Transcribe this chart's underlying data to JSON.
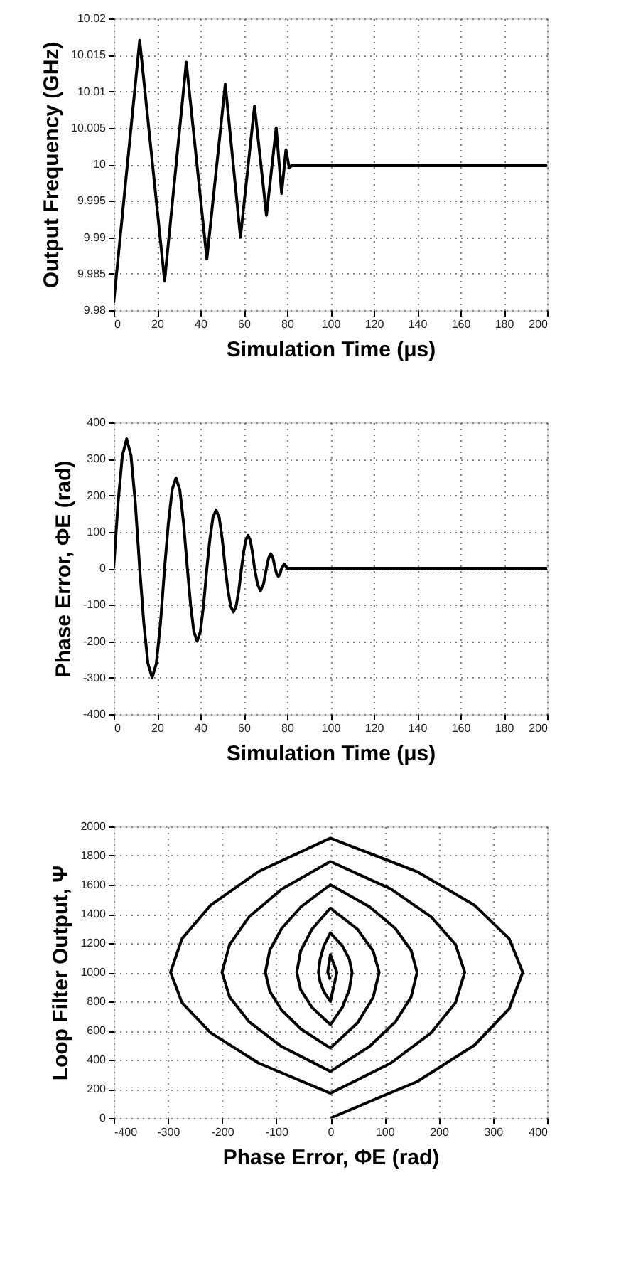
{
  "chart_data": [
    {
      "type": "line",
      "xlabel": "Simulation Time (μs)",
      "ylabel": "Output Frequency (GHz)",
      "x": [
        0,
        12,
        23.5,
        33.5,
        43,
        51.5,
        58.5,
        65,
        70.5,
        75,
        77.5,
        79.5,
        81,
        82,
        200
      ],
      "series": [
        {
          "color": "#000000",
          "values": [
            9.981,
            10.017,
            9.984,
            10.014,
            9.987,
            10.011,
            9.99,
            10.008,
            9.993,
            10.005,
            9.996,
            10.002,
            9.9995,
            9.9998,
            9.9998
          ]
        }
      ],
      "xlim": [
        0,
        200
      ],
      "xticks": [
        0,
        20,
        40,
        60,
        80,
        100,
        120,
        140,
        160,
        180,
        200
      ],
      "ylim": [
        9.98,
        10.02
      ],
      "yticks": [
        9.98,
        9.985,
        9.99,
        9.995,
        10,
        10.005,
        10.01,
        10.015,
        10.02
      ],
      "grid": true
    },
    {
      "type": "line",
      "xlabel": "Simulation Time (μs)",
      "ylabel": "Phase Error, ΦE (rad)",
      "x": [
        0,
        2,
        4,
        6,
        8,
        10,
        12,
        13.9,
        15.8,
        17.75,
        19.7,
        21.6,
        23.5,
        25.25,
        27,
        28.75,
        30.5,
        32.25,
        34,
        35.5,
        37,
        38.5,
        40,
        41.5,
        43,
        44.4,
        45.8,
        47.25,
        48.7,
        50.1,
        51.5,
        52.75,
        54,
        55.25,
        56.5,
        57.75,
        59,
        60,
        61,
        62,
        63,
        64,
        65,
        66.4,
        67.75,
        69.1,
        70.5,
        71.5,
        72.5,
        73.5,
        74.5,
        75.25,
        76,
        76.75,
        77.5,
        78.75,
        80,
        200
      ],
      "series": [
        {
          "color": "#000000",
          "values": [
            0,
            178,
            309,
            355,
            309,
            178,
            0,
            -150,
            -261,
            -300,
            -261,
            -150,
            0,
            124,
            216,
            248,
            216,
            124,
            0,
            -100,
            -174,
            -200,
            -174,
            -100,
            0,
            80,
            139,
            160,
            139,
            80,
            0,
            -60,
            -104,
            -120,
            -104,
            -60,
            0,
            45,
            78,
            90,
            78,
            45,
            0,
            -44,
            -62,
            -44,
            0,
            28,
            40,
            28,
            0,
            -16,
            -22,
            -16,
            0,
            12,
            0,
            0
          ]
        }
      ],
      "xlim": [
        0,
        200
      ],
      "xticks": [
        0,
        20,
        40,
        60,
        80,
        100,
        120,
        140,
        160,
        180,
        200
      ],
      "ylim": [
        -400,
        400
      ],
      "yticks": [
        -400,
        -300,
        -200,
        -100,
        0,
        100,
        200,
        300,
        400
      ],
      "grid": true
    },
    {
      "type": "line",
      "xlabel": "Phase Error, ΦE (rad)",
      "ylabel": "Loop Filter Output, Ψ",
      "x": [
        0,
        160,
        266,
        330,
        355,
        330,
        266,
        160,
        0,
        -133,
        -221,
        -274,
        -295,
        -274,
        -221,
        -133,
        0,
        112,
        186,
        231,
        248,
        231,
        186,
        112,
        0,
        -90,
        -150,
        -186,
        -200,
        -186,
        -150,
        -90,
        0,
        72,
        120,
        149,
        160,
        149,
        120,
        72,
        0,
        -54,
        -90,
        -112,
        -120,
        -112,
        -90,
        -54,
        0,
        50,
        79,
        90,
        79,
        50,
        0,
        -34,
        -55,
        -62,
        -55,
        -34,
        0,
        22,
        35,
        40,
        35,
        22,
        0,
        -12,
        -19,
        -22,
        -19,
        -12,
        0,
        12,
        0,
        -5,
        0
      ],
      "series": [
        {
          "color": "#000000",
          "values": [
            0,
            250,
            500,
            750,
            1000,
            1230,
            1460,
            1690,
            1920,
            1690,
            1460,
            1230,
            1000,
            792,
            585,
            378,
            170,
            378,
            585,
            792,
            1000,
            1190,
            1380,
            1570,
            1760,
            1570,
            1380,
            1190,
            1000,
            830,
            660,
            490,
            320,
            490,
            660,
            830,
            1000,
            1150,
            1300,
            1450,
            1600,
            1450,
            1300,
            1150,
            1000,
            870,
            740,
            610,
            480,
            652,
            828,
            1000,
            1145,
            1295,
            1440,
            1295,
            1145,
            1000,
            881,
            759,
            640,
            759,
            881,
            1000,
            1089,
            1181,
            1270,
            1181,
            1089,
            1000,
            934,
            866,
            800,
            1000,
            1120,
            1000,
            950
          ]
        }
      ],
      "xlim": [
        -400,
        400
      ],
      "xticks": [
        -400,
        -300,
        -200,
        -100,
        0,
        100,
        200,
        300,
        400
      ],
      "ylim": [
        0,
        2000
      ],
      "yticks": [
        0,
        200,
        400,
        600,
        800,
        1000,
        1200,
        1400,
        1600,
        1800,
        2000
      ],
      "grid": true
    }
  ]
}
